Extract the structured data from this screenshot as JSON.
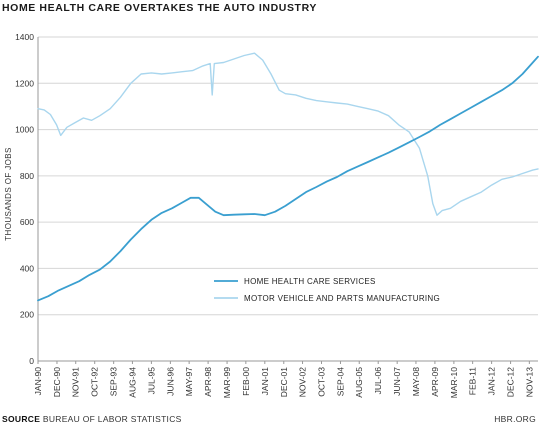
{
  "title": "HOME HEALTH CARE OVERTAKES THE AUTO INDUSTRY",
  "footer": {
    "source_label": "SOURCE",
    "source_text": "BUREAU OF LABOR STATISTICS",
    "brand": "HBR.ORG"
  },
  "colors": {
    "home_health": "#3a9fd0",
    "motor_vehicle": "#a9d6ee",
    "axis": "#999999",
    "grid": "#d6d6d6"
  },
  "chart_data": {
    "type": "line",
    "ylabel": "THOUSANDS OF JOBS",
    "ylim": [
      0,
      1400
    ],
    "yticks": [
      0,
      200,
      400,
      600,
      800,
      1000,
      1200,
      1400
    ],
    "xlim": [
      1990.0,
      2014.25
    ],
    "grid": true,
    "legend": "center-right",
    "xtick_labels": [
      {
        "label": "JAN-90",
        "x": 1990.0
      },
      {
        "label": "DEC-90",
        "x": 1990.92
      },
      {
        "label": "NOV-91",
        "x": 1991.83
      },
      {
        "label": "OCT-92",
        "x": 1992.75
      },
      {
        "label": "SEP-93",
        "x": 1993.67
      },
      {
        "label": "AUG-94",
        "x": 1994.58
      },
      {
        "label": "JUL-95",
        "x": 1995.5
      },
      {
        "label": "JUN-96",
        "x": 1996.42
      },
      {
        "label": "MAY-97",
        "x": 1997.33
      },
      {
        "label": "APR-98",
        "x": 1998.25
      },
      {
        "label": "MAR-99",
        "x": 1999.17
      },
      {
        "label": "FEB-00",
        "x": 2000.08
      },
      {
        "label": "JAN-01",
        "x": 2001.0
      },
      {
        "label": "DEC-01",
        "x": 2001.92
      },
      {
        "label": "NOV-02",
        "x": 2002.83
      },
      {
        "label": "OCT-03",
        "x": 2003.75
      },
      {
        "label": "SEP-04",
        "x": 2004.67
      },
      {
        "label": "AUG-05",
        "x": 2005.58
      },
      {
        "label": "JUL-06",
        "x": 2006.5
      },
      {
        "label": "JUN-07",
        "x": 2007.42
      },
      {
        "label": "MAY-08",
        "x": 2008.33
      },
      {
        "label": "APR-09",
        "x": 2009.25
      },
      {
        "label": "MAR-10",
        "x": 2010.17
      },
      {
        "label": "FEB-11",
        "x": 2011.08
      },
      {
        "label": "JAN-12",
        "x": 2012.0
      },
      {
        "label": "DEC-12",
        "x": 2012.92
      },
      {
        "label": "NOV-13",
        "x": 2013.83
      }
    ],
    "series": [
      {
        "name": "HOME HEALTH CARE SERVICES",
        "color": "#3a9fd0",
        "points": [
          [
            1990.0,
            262
          ],
          [
            1990.5,
            280
          ],
          [
            1991.0,
            305
          ],
          [
            1991.5,
            325
          ],
          [
            1992.0,
            345
          ],
          [
            1992.5,
            372
          ],
          [
            1993.0,
            395
          ],
          [
            1993.5,
            430
          ],
          [
            1994.0,
            475
          ],
          [
            1994.5,
            525
          ],
          [
            1995.0,
            570
          ],
          [
            1995.5,
            610
          ],
          [
            1996.0,
            640
          ],
          [
            1996.5,
            660
          ],
          [
            1997.0,
            685
          ],
          [
            1997.4,
            705
          ],
          [
            1997.8,
            705
          ],
          [
            1998.2,
            675
          ],
          [
            1998.6,
            645
          ],
          [
            1999.0,
            630
          ],
          [
            1999.5,
            632
          ],
          [
            2000.0,
            634
          ],
          [
            2000.5,
            635
          ],
          [
            2001.0,
            630
          ],
          [
            2001.5,
            645
          ],
          [
            2002.0,
            670
          ],
          [
            2002.5,
            700
          ],
          [
            2003.0,
            730
          ],
          [
            2003.5,
            752
          ],
          [
            2004.0,
            775
          ],
          [
            2004.5,
            795
          ],
          [
            2005.0,
            820
          ],
          [
            2005.5,
            840
          ],
          [
            2006.0,
            860
          ],
          [
            2006.5,
            880
          ],
          [
            2007.0,
            900
          ],
          [
            2007.5,
            922
          ],
          [
            2008.0,
            945
          ],
          [
            2008.5,
            968
          ],
          [
            2009.0,
            992
          ],
          [
            2009.5,
            1020
          ],
          [
            2010.0,
            1045
          ],
          [
            2010.5,
            1070
          ],
          [
            2011.0,
            1095
          ],
          [
            2011.5,
            1120
          ],
          [
            2012.0,
            1145
          ],
          [
            2012.5,
            1170
          ],
          [
            2013.0,
            1200
          ],
          [
            2013.5,
            1240
          ],
          [
            2014.0,
            1290
          ],
          [
            2014.25,
            1315
          ]
        ]
      },
      {
        "name": "MOTOR VEHICLE AND PARTS MANUFACTURING",
        "color": "#a9d6ee",
        "points": [
          [
            1990.0,
            1090
          ],
          [
            1990.3,
            1085
          ],
          [
            1990.6,
            1065
          ],
          [
            1990.9,
            1020
          ],
          [
            1991.1,
            975
          ],
          [
            1991.4,
            1010
          ],
          [
            1991.8,
            1030
          ],
          [
            1992.2,
            1050
          ],
          [
            1992.6,
            1040
          ],
          [
            1993.0,
            1060
          ],
          [
            1993.5,
            1090
          ],
          [
            1994.0,
            1140
          ],
          [
            1994.5,
            1200
          ],
          [
            1995.0,
            1240
          ],
          [
            1995.5,
            1245
          ],
          [
            1996.0,
            1240
          ],
          [
            1996.5,
            1245
          ],
          [
            1997.0,
            1250
          ],
          [
            1997.5,
            1255
          ],
          [
            1998.0,
            1275
          ],
          [
            1998.35,
            1285
          ],
          [
            1998.45,
            1150
          ],
          [
            1998.55,
            1285
          ],
          [
            1999.0,
            1290
          ],
          [
            1999.5,
            1305
          ],
          [
            2000.0,
            1320
          ],
          [
            2000.5,
            1330
          ],
          [
            2000.9,
            1300
          ],
          [
            2001.3,
            1240
          ],
          [
            2001.7,
            1170
          ],
          [
            2002.0,
            1155
          ],
          [
            2002.5,
            1150
          ],
          [
            2003.0,
            1135
          ],
          [
            2003.5,
            1125
          ],
          [
            2004.0,
            1120
          ],
          [
            2004.5,
            1115
          ],
          [
            2005.0,
            1110
          ],
          [
            2005.5,
            1100
          ],
          [
            2006.0,
            1090
          ],
          [
            2006.5,
            1080
          ],
          [
            2007.0,
            1060
          ],
          [
            2007.5,
            1020
          ],
          [
            2008.0,
            990
          ],
          [
            2008.5,
            920
          ],
          [
            2008.9,
            800
          ],
          [
            2009.15,
            680
          ],
          [
            2009.35,
            630
          ],
          [
            2009.6,
            650
          ],
          [
            2010.0,
            660
          ],
          [
            2010.5,
            690
          ],
          [
            2011.0,
            710
          ],
          [
            2011.5,
            730
          ],
          [
            2012.0,
            760
          ],
          [
            2012.5,
            785
          ],
          [
            2013.0,
            795
          ],
          [
            2013.5,
            810
          ],
          [
            2014.0,
            825
          ],
          [
            2014.25,
            830
          ]
        ]
      }
    ]
  }
}
